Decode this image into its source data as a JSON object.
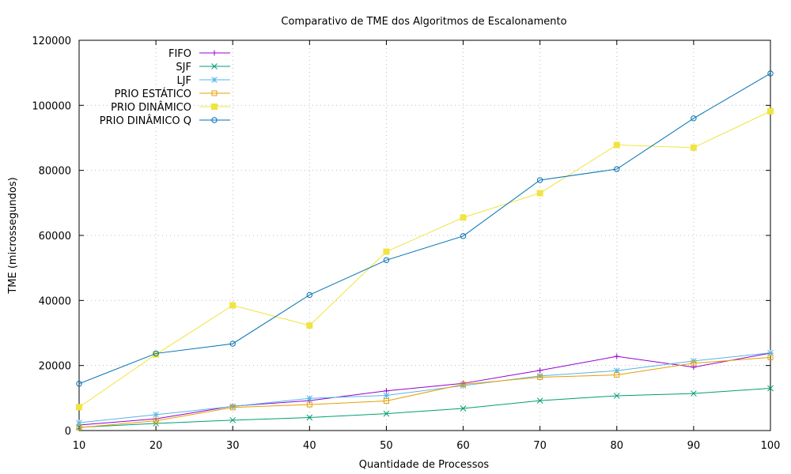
{
  "chart_data": {
    "type": "line",
    "title": "Comparativo de TME dos Algoritmos de Escalonamento",
    "xlabel": "Quantidade de Processos",
    "ylabel": "TME (microssegundos)",
    "x": [
      10,
      20,
      30,
      40,
      50,
      60,
      70,
      80,
      90,
      100
    ],
    "xlim": [
      10,
      100
    ],
    "ylim": [
      0,
      120000
    ],
    "xticks": [
      "10",
      "20",
      "30",
      "40",
      "50",
      "60",
      "70",
      "80",
      "90",
      "100"
    ],
    "yticks": [
      "0",
      "20000",
      "40000",
      "60000",
      "80000",
      "100000",
      "120000"
    ],
    "grid": true,
    "legend": "top-left",
    "series": [
      {
        "name": "FIFO",
        "color": "#9400d3",
        "marker": "plus",
        "values": [
          1700,
          3600,
          7500,
          9200,
          12200,
          14500,
          18500,
          22800,
          19500,
          23800
        ]
      },
      {
        "name": "SJF",
        "color": "#009e73",
        "marker": "cross",
        "values": [
          1000,
          2200,
          3200,
          4000,
          5200,
          6800,
          9200,
          10700,
          11400,
          13000
        ]
      },
      {
        "name": "LJF",
        "color": "#56b4e9",
        "marker": "star",
        "values": [
          2400,
          4900,
          7400,
          9900,
          10800,
          13800,
          16800,
          18400,
          21400,
          23900
        ]
      },
      {
        "name": "PRIO ESTÁTICO",
        "color": "#e69f00",
        "marker": "open-square",
        "values": [
          900,
          3000,
          7100,
          8000,
          9100,
          14200,
          16400,
          17100,
          20700,
          22500
        ]
      },
      {
        "name": "PRIO DINÂMICO",
        "color": "#f0e442",
        "marker": "filled-square",
        "values": [
          7200,
          23400,
          38500,
          32300,
          55000,
          65500,
          73000,
          87800,
          87000,
          98200
        ]
      },
      {
        "name": "PRIO DINÂMICO Q",
        "color": "#0072b2",
        "marker": "open-circle",
        "values": [
          14400,
          23700,
          26700,
          41700,
          52400,
          59800,
          77000,
          80400,
          96000,
          109800
        ]
      }
    ]
  }
}
